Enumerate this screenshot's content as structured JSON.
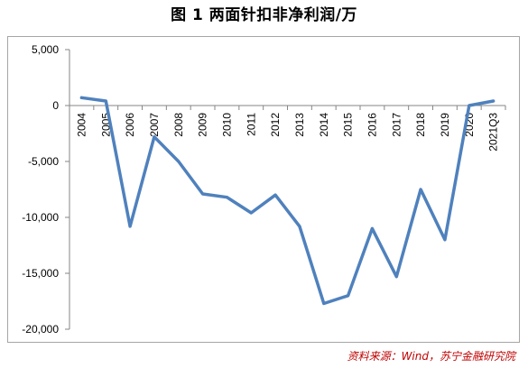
{
  "chart_data": {
    "type": "line",
    "title": "图 1  两面针扣非净利润/万",
    "source": "资料来源：Wind，苏宁金融研究院",
    "xlabel": "",
    "ylabel": "",
    "categories": [
      "2004",
      "2005",
      "2006",
      "2007",
      "2008",
      "2009",
      "2010",
      "2011",
      "2012",
      "2013",
      "2014",
      "2015",
      "2016",
      "2017",
      "2018",
      "2019",
      "2020",
      "2021Q3"
    ],
    "series": [
      {
        "values": [
          700,
          400,
          -10800,
          -2800,
          -5000,
          -7900,
          -8200,
          -9600,
          -8000,
          -10800,
          -17700,
          -17000,
          -11000,
          -15300,
          -7500,
          -12000,
          0,
          400
        ]
      }
    ],
    "ylim": [
      -20000,
      5000
    ],
    "yticks": [
      5000,
      0,
      -5000,
      -10000,
      -15000,
      -20000
    ],
    "ytick_labels": [
      "5,000",
      "0",
      "-5,000",
      "-10,000",
      "-15,000",
      "-20,000"
    ],
    "line_color": "#4f81bd",
    "grid": false,
    "legend": "none"
  }
}
